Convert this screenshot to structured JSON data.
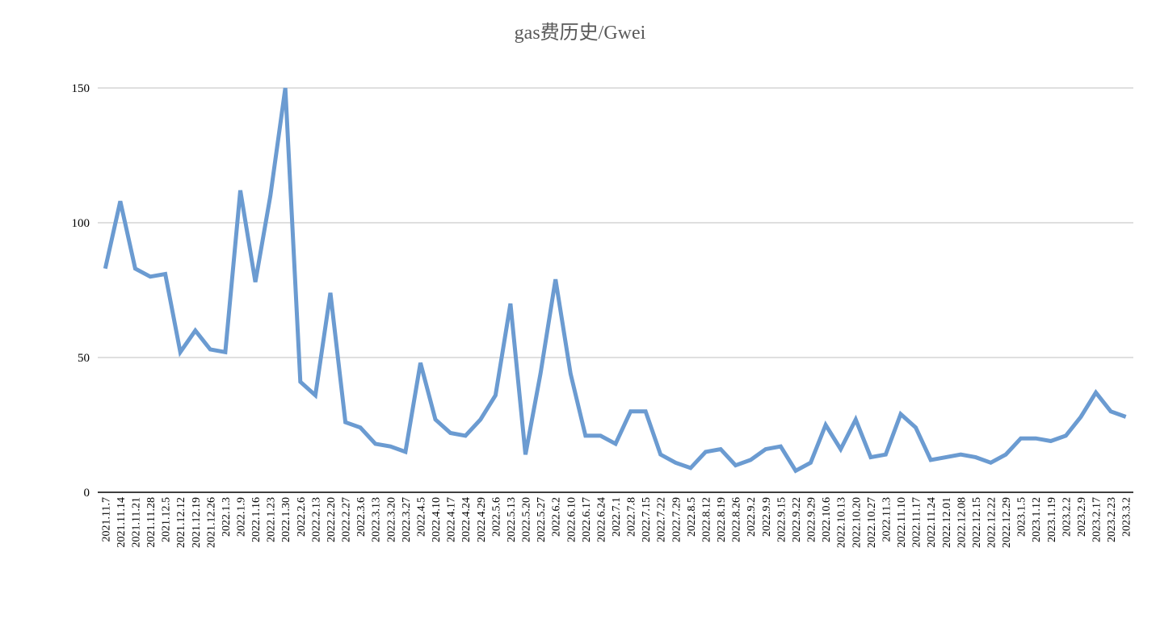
{
  "chart_data": {
    "type": "line",
    "title": "gas费历史/Gwei",
    "categories": [
      "2021.11.7",
      "2021.11.14",
      "2021.11.21",
      "2021.11.28",
      "2021.12.5",
      "2021.12.12",
      "2021.12.19",
      "2021.12.26",
      "2022.1.3",
      "2022.1.9",
      "2022.1.16",
      "2022.1.23",
      "2022.1.30",
      "2022.2.6",
      "2022.2.13",
      "2022.2.20",
      "2022.2.27",
      "2022.3.6",
      "2022.3.13",
      "2022.3.20",
      "2022.3.27",
      "2022.4.5",
      "2022.4.10",
      "2022.4.17",
      "2022.4.24",
      "2022.4.29",
      "2022.5.6",
      "2022.5.13",
      "2022.5.20",
      "2022.5.27",
      "2022.6.2",
      "2022.6.10",
      "2022.6.17",
      "2022.6.24",
      "2022.7.1",
      "2022.7.8",
      "2022.7.15",
      "2022.7.22",
      "2022.7.29",
      "2022.8.5",
      "2022.8.12",
      "2022.8.19",
      "2022.8.26",
      "2022.9.2",
      "2022.9.9",
      "2022.9.15",
      "2022.9.22",
      "2022.9.29",
      "2022.10.6",
      "2022.10.13",
      "2022.10.20",
      "2022.10.27",
      "2022.11.3",
      "2022.11.10",
      "2022.11.17",
      "2022.11.24",
      "2022.12.01",
      "2022.12.08",
      "2022.12.15",
      "2022.12.22",
      "2022.12.29",
      "2023.1.5",
      "2023.1.12",
      "2023.1.19",
      "2023.2.2",
      "2023.2.9",
      "2023.2.17",
      "2023.2.23",
      "2023.3.2"
    ],
    "values": [
      83,
      108,
      83,
      80,
      81,
      52,
      60,
      53,
      52,
      112,
      78,
      110,
      150,
      41,
      36,
      74,
      26,
      24,
      18,
      17,
      15,
      48,
      27,
      22,
      21,
      27,
      36,
      70,
      14,
      44,
      79,
      44,
      21,
      21,
      18,
      30,
      30,
      14,
      11,
      9,
      15,
      16,
      10,
      12,
      16,
      17,
      8,
      11,
      25,
      16,
      27,
      13,
      14,
      29,
      24,
      12,
      13,
      14,
      13,
      11,
      14,
      20,
      20,
      19,
      21,
      28,
      37,
      30,
      28
    ],
    "color": "#6b9bd1",
    "ylim": [
      0,
      150
    ],
    "yticks": [
      0,
      50,
      100,
      150
    ],
    "grid": true
  }
}
